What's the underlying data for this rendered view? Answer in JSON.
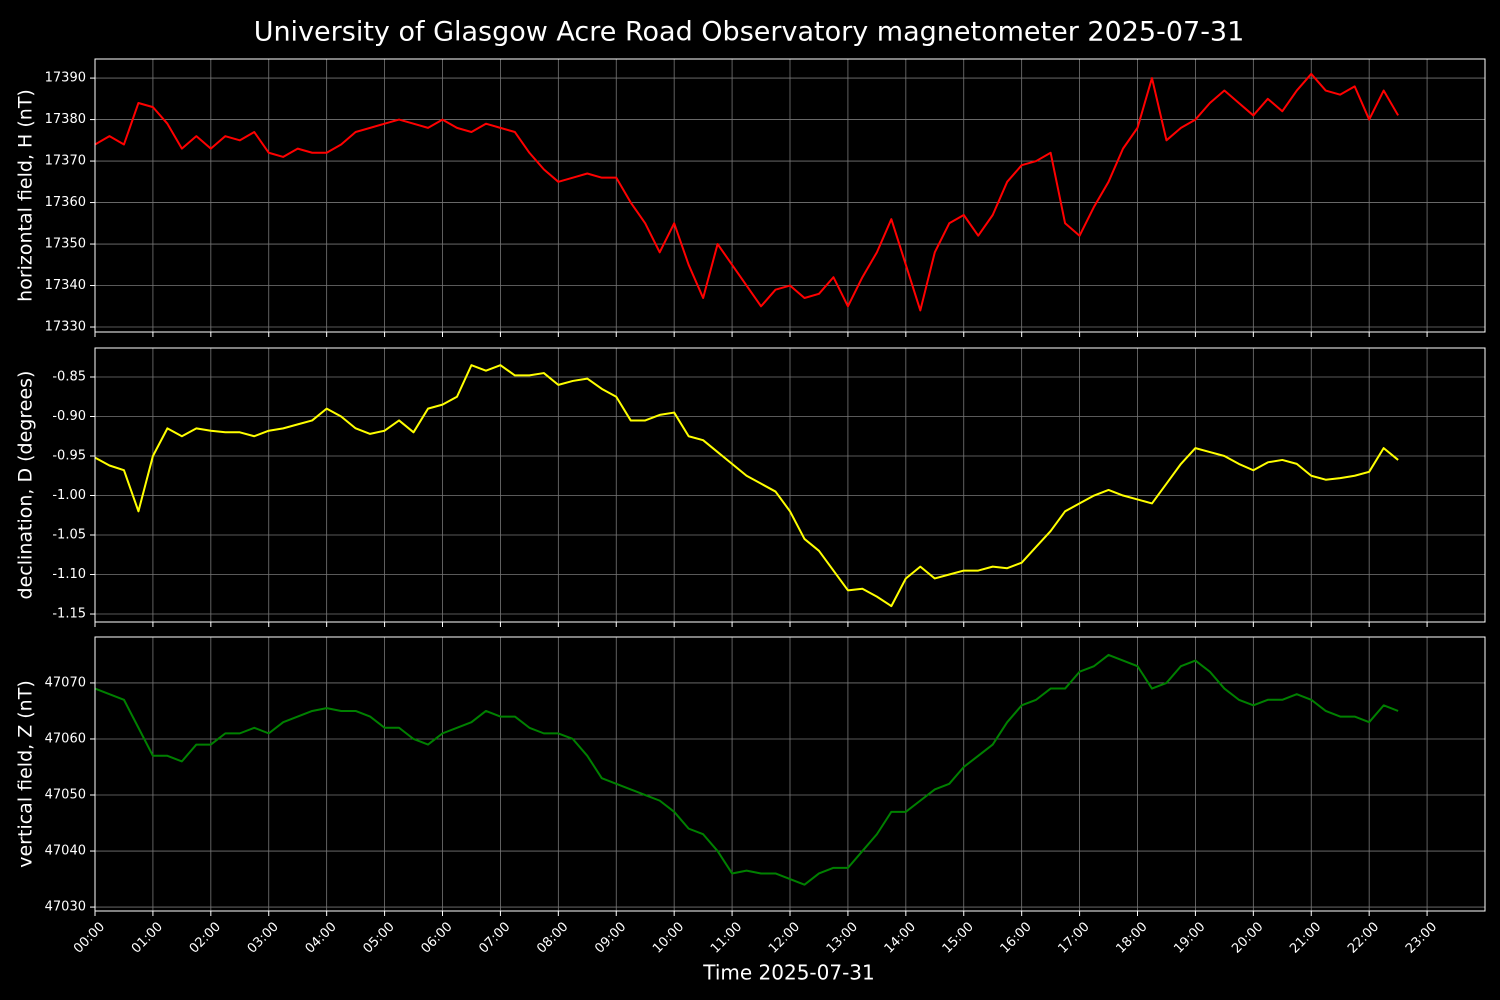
{
  "chart_data": [
    {
      "type": "line",
      "title": "University of Glasgow Acre Road Observatory magnetometer 2025-07-31",
      "ylabel": "horizontal field, H (nT)",
      "color": "red",
      "grid": true,
      "x": [
        0,
        0.25,
        0.5,
        0.75,
        1,
        1.25,
        1.5,
        1.75,
        2,
        2.25,
        2.5,
        2.75,
        3,
        3.25,
        3.5,
        3.75,
        4,
        4.25,
        4.5,
        4.75,
        5,
        5.25,
        5.5,
        5.75,
        6,
        6.25,
        6.5,
        6.75,
        7,
        7.25,
        7.5,
        7.75,
        8,
        8.25,
        8.5,
        8.75,
        9,
        9.25,
        9.5,
        9.75,
        10,
        10.25,
        10.5,
        10.75,
        11,
        11.25,
        11.5,
        11.75,
        12,
        12.25,
        12.5,
        12.75,
        13,
        13.25,
        13.5,
        13.75,
        14,
        14.25,
        14.5,
        14.75,
        15,
        15.25,
        15.5,
        15.75,
        16,
        16.25,
        16.5,
        16.75,
        17,
        17.25,
        17.5,
        17.75,
        18,
        18.25,
        18.5,
        18.75,
        19,
        19.25,
        19.5,
        19.75,
        20,
        20.25,
        20.5,
        20.75,
        21,
        21.25,
        21.5,
        21.75,
        22,
        22.25,
        22.5
      ],
      "values": [
        17374,
        17376,
        17374,
        17384,
        17383,
        17379,
        17373,
        17376,
        17373,
        17376,
        17375,
        17377,
        17372,
        17371,
        17373,
        17372,
        17372,
        17374,
        17377,
        17378,
        17379,
        17380,
        17379,
        17378,
        17380,
        17378,
        17377,
        17379,
        17378,
        17377,
        17372,
        17368,
        17365,
        17366,
        17367,
        17366,
        17366,
        17360,
        17355,
        17348,
        17355,
        17345,
        17337,
        17350,
        17345,
        17340,
        17335,
        17339,
        17340,
        17337,
        17338,
        17342,
        17335,
        17342,
        17348,
        17356,
        17345,
        17334,
        17348,
        17355,
        17357,
        17352,
        17357,
        17365,
        17369,
        17370,
        17372,
        17355,
        17352,
        17359,
        17365,
        17373,
        17378,
        17390,
        17375,
        17378,
        17380,
        17384,
        17387,
        17384,
        17381,
        17385,
        17382,
        17387,
        17391,
        17387,
        17386,
        17388,
        17380,
        17387,
        17381
      ],
      "xlim": [
        0,
        24
      ],
      "xticks": [
        0,
        1,
        2,
        3,
        4,
        5,
        6,
        7,
        8,
        9,
        10,
        11,
        12,
        13,
        14,
        15,
        16,
        17,
        18,
        19,
        20,
        21,
        22,
        23
      ],
      "ylim": [
        17328.8,
        17394.6
      ],
      "yticks": [
        17330,
        17340,
        17350,
        17360,
        17370,
        17380,
        17390
      ]
    },
    {
      "type": "line",
      "ylabel": "declination, D (degrees)",
      "color": "yellow",
      "grid": true,
      "x": [
        0,
        0.25,
        0.5,
        0.75,
        1,
        1.25,
        1.5,
        1.75,
        2,
        2.25,
        2.5,
        2.75,
        3,
        3.25,
        3.5,
        3.75,
        4,
        4.25,
        4.5,
        4.75,
        5,
        5.25,
        5.5,
        5.75,
        6,
        6.25,
        6.5,
        6.75,
        7,
        7.25,
        7.5,
        7.75,
        8,
        8.25,
        8.5,
        8.75,
        9,
        9.25,
        9.5,
        9.75,
        10,
        10.25,
        10.5,
        10.75,
        11,
        11.25,
        11.5,
        11.75,
        12,
        12.25,
        12.5,
        12.75,
        13,
        13.25,
        13.5,
        13.75,
        14,
        14.25,
        14.5,
        14.75,
        15,
        15.25,
        15.5,
        15.75,
        16,
        16.25,
        16.5,
        16.75,
        17,
        17.25,
        17.5,
        17.75,
        18,
        18.25,
        18.5,
        18.75,
        19,
        19.25,
        19.5,
        19.75,
        20,
        20.25,
        20.5,
        20.75,
        21,
        21.25,
        21.5,
        21.75,
        22,
        22.25,
        22.5
      ],
      "values": [
        -0.952,
        -0.962,
        -0.968,
        -1.02,
        -0.95,
        -0.915,
        -0.925,
        -0.915,
        -0.918,
        -0.92,
        -0.92,
        -0.925,
        -0.918,
        -0.915,
        -0.91,
        -0.905,
        -0.89,
        -0.9,
        -0.915,
        -0.922,
        -0.918,
        -0.905,
        -0.92,
        -0.89,
        -0.885,
        -0.875,
        -0.835,
        -0.842,
        -0.835,
        -0.848,
        -0.848,
        -0.845,
        -0.86,
        -0.855,
        -0.852,
        -0.865,
        -0.875,
        -0.905,
        -0.905,
        -0.898,
        -0.895,
        -0.925,
        -0.93,
        -0.945,
        -0.96,
        -0.975,
        -0.985,
        -0.995,
        -1.02,
        -1.055,
        -1.07,
        -1.095,
        -1.12,
        -1.118,
        -1.128,
        -1.14,
        -1.105,
        -1.09,
        -1.105,
        -1.1,
        -1.095,
        -1.095,
        -1.09,
        -1.092,
        -1.085,
        -1.065,
        -1.045,
        -1.02,
        -1.01,
        -1.0,
        -0.993,
        -1.0,
        -1.005,
        -1.01,
        -0.985,
        -0.96,
        -0.94,
        -0.945,
        -0.95,
        -0.96,
        -0.968,
        -0.958,
        -0.955,
        -0.96,
        -0.975,
        -0.98,
        -0.978,
        -0.975,
        -0.97,
        -0.94,
        -0.955
      ],
      "xlim": [
        0,
        24
      ],
      "xticks": [
        0,
        1,
        2,
        3,
        4,
        5,
        6,
        7,
        8,
        9,
        10,
        11,
        12,
        13,
        14,
        15,
        16,
        17,
        18,
        19,
        20,
        21,
        22,
        23
      ],
      "ylim": [
        -1.1601,
        -0.8133
      ],
      "yticks": [
        -1.15,
        {
          "value": -1.1,
          "label": "-1.10"
        },
        -1.05,
        {
          "value": -1,
          "label": "-1.00"
        },
        -0.95,
        {
          "value": -0.9,
          "label": "-0.90"
        },
        -0.85
      ]
    },
    {
      "type": "line",
      "ylabel": "vertical field, Z (nT)",
      "xlabel": "Time 2025-07-31",
      "color": "#008000",
      "grid": true,
      "x": [
        0,
        0.25,
        0.5,
        0.75,
        1,
        1.25,
        1.5,
        1.75,
        2,
        2.25,
        2.5,
        2.75,
        3,
        3.25,
        3.5,
        3.75,
        4,
        4.25,
        4.5,
        4.75,
        5,
        5.25,
        5.5,
        5.75,
        6,
        6.25,
        6.5,
        6.75,
        7,
        7.25,
        7.5,
        7.75,
        8,
        8.25,
        8.5,
        8.75,
        9,
        9.25,
        9.5,
        9.75,
        10,
        10.25,
        10.5,
        10.75,
        11,
        11.25,
        11.5,
        11.75,
        12,
        12.25,
        12.5,
        12.75,
        13,
        13.25,
        13.5,
        13.75,
        14,
        14.25,
        14.5,
        14.75,
        15,
        15.25,
        15.5,
        15.75,
        16,
        16.25,
        16.5,
        16.75,
        17,
        17.25,
        17.5,
        17.75,
        18,
        18.25,
        18.5,
        18.75,
        19,
        19.25,
        19.5,
        19.75,
        20,
        20.25,
        20.5,
        20.75,
        21,
        21.25,
        21.5,
        21.75,
        22,
        22.25,
        22.5
      ],
      "values": [
        47069,
        47068,
        47067,
        47062,
        47057,
        47057,
        47056,
        47059,
        47059,
        47061,
        47061,
        47062,
        47061,
        47063,
        47064,
        47065,
        47065.5,
        47065,
        47065,
        47064,
        47062,
        47062,
        47060,
        47059,
        47061,
        47062,
        47063,
        47065,
        47064,
        47064,
        47062,
        47061,
        47061,
        47060,
        47057,
        47053,
        47052,
        47051,
        47050,
        47049,
        47047,
        47044,
        47043,
        47040,
        47036,
        47036.5,
        47036,
        47036,
        47035,
        47034,
        47036,
        47037,
        47037,
        47040,
        47043,
        47047,
        47047,
        47049,
        47051,
        47052,
        47055,
        47057,
        47059,
        47063,
        47066,
        47067,
        47069,
        47069,
        47072,
        47073,
        47075,
        47074,
        47073,
        47069,
        47070,
        47073,
        47074,
        47072,
        47069,
        47067,
        47066,
        47067,
        47067,
        47068,
        47067,
        47065,
        47064,
        47064,
        47063,
        47066,
        47065
      ],
      "xlim": [
        0,
        24
      ],
      "xticks": [
        {
          "value": 0,
          "label": "00:00"
        },
        {
          "value": 1,
          "label": "01:00"
        },
        {
          "value": 2,
          "label": "02:00"
        },
        {
          "value": 3,
          "label": "03:00"
        },
        {
          "value": 4,
          "label": "04:00"
        },
        {
          "value": 5,
          "label": "05:00"
        },
        {
          "value": 6,
          "label": "06:00"
        },
        {
          "value": 7,
          "label": "07:00"
        },
        {
          "value": 8,
          "label": "08:00"
        },
        {
          "value": 9,
          "label": "09:00"
        },
        {
          "value": 10,
          "label": "10:00"
        },
        {
          "value": 11,
          "label": "11:00"
        },
        {
          "value": 12,
          "label": "12:00"
        },
        {
          "value": 13,
          "label": "13:00"
        },
        {
          "value": 14,
          "label": "14:00"
        },
        {
          "value": 15,
          "label": "15:00"
        },
        {
          "value": 16,
          "label": "16:00"
        },
        {
          "value": 17,
          "label": "17:00"
        },
        {
          "value": 18,
          "label": "18:00"
        },
        {
          "value": 19,
          "label": "19:00"
        },
        {
          "value": 20,
          "label": "20:00"
        },
        {
          "value": 21,
          "label": "21:00"
        },
        {
          "value": 22,
          "label": "22:00"
        },
        {
          "value": 23,
          "label": "23:00"
        }
      ],
      "ylim": [
        47029.3,
        47078.2
      ],
      "yticks": [
        47030,
        47040,
        47050,
        47060,
        47070
      ]
    }
  ]
}
